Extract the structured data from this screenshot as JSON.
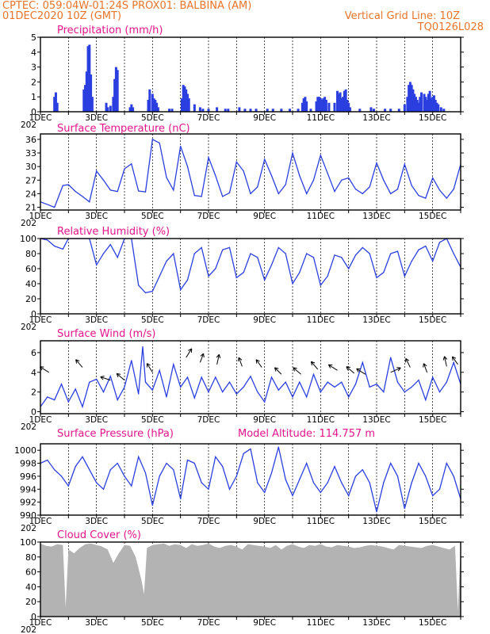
{
  "header": {
    "line1": "CPTEC:   059:04W-01:24S   PROX01: BALBINA (AM)",
    "line2": "01DEC2020 10Z (GMT)",
    "grid_note": "Vertical Grid Line: 10Z",
    "code": "TQ0126L028"
  },
  "colors": {
    "header": "#e8742a",
    "title": "#e4148c",
    "line": "#2b3fe0",
    "bar": "#2b3fe0",
    "cloud": "#b3b3b3"
  },
  "x_axis": {
    "labels": [
      "1DEC",
      "3DEC",
      "5DEC",
      "7DEC",
      "9DEC",
      "11DEC",
      "13DEC",
      "15DEC"
    ],
    "label_days": [
      1,
      3,
      5,
      7,
      9,
      11,
      13,
      15
    ],
    "year_fragment": "202",
    "start_day": 1,
    "end_day": 16
  },
  "chart_data": [
    {
      "type": "bar",
      "title": "Precipitation (mm/h)",
      "ylim": [
        0,
        5
      ],
      "yticks": [
        0,
        1,
        2,
        3,
        4,
        5
      ],
      "x": [
        1.5,
        1.55,
        1.6,
        2.55,
        2.6,
        2.65,
        2.7,
        2.75,
        2.8,
        2.85,
        3.35,
        3.4,
        3.5,
        3.6,
        3.65,
        3.7,
        3.75,
        4.2,
        4.25,
        4.3,
        4.85,
        4.9,
        5.0,
        5.05,
        5.1,
        5.15,
        5.2,
        5.6,
        5.7,
        6.05,
        6.1,
        6.15,
        6.2,
        6.25,
        6.3,
        6.5,
        6.7,
        6.8,
        7.0,
        7.3,
        7.6,
        7.7,
        8.1,
        8.3,
        8.5,
        8.7,
        9.1,
        9.3,
        9.6,
        9.9,
        10.2,
        10.35,
        10.4,
        10.45,
        10.5,
        10.65,
        10.85,
        10.9,
        10.95,
        11.0,
        11.05,
        11.1,
        11.15,
        11.2,
        11.3,
        11.5,
        11.6,
        11.62,
        11.7,
        11.75,
        11.8,
        11.85,
        11.9,
        11.95,
        12.0,
        12.05,
        12.4,
        12.8,
        12.9,
        13.3,
        13.5,
        13.8,
        14.0,
        14.1,
        14.15,
        14.2,
        14.25,
        14.3,
        14.35,
        14.4,
        14.45,
        14.5,
        14.55,
        14.6,
        14.7,
        14.75,
        14.8,
        14.85,
        14.9,
        14.95,
        15.0,
        15.05,
        15.1,
        15.15,
        15.2,
        15.3,
        15.4
      ],
      "values": [
        1.0,
        1.3,
        0.6,
        1.5,
        1.8,
        2.7,
        4.4,
        4.5,
        2.5,
        1.0,
        0.6,
        0.3,
        0.4,
        1.0,
        2.2,
        3.0,
        2.8,
        0.3,
        0.5,
        0.3,
        0.8,
        1.5,
        1.2,
        0.9,
        0.8,
        0.6,
        0.3,
        0.2,
        0.2,
        0.9,
        1.8,
        1.7,
        1.5,
        1.2,
        0.9,
        0.5,
        0.3,
        0.2,
        0.2,
        0.3,
        0.2,
        0.2,
        0.3,
        0.2,
        0.2,
        0.2,
        0.2,
        0.2,
        0.2,
        0.2,
        0.2,
        0.6,
        0.9,
        1.0,
        0.7,
        0.2,
        0.7,
        1.0,
        1.0,
        0.9,
        0.8,
        0.9,
        1.0,
        0.8,
        0.6,
        0.6,
        1.4,
        1.2,
        1.3,
        0.9,
        1.0,
        1.4,
        1.5,
        0.8,
        0.6,
        0.3,
        0.2,
        0.3,
        0.2,
        0.2,
        0.2,
        0.2,
        0.5,
        1.0,
        1.8,
        2.0,
        1.8,
        1.5,
        1.2,
        1.0,
        0.8,
        0.6,
        1.0,
        1.3,
        1.2,
        1.0,
        0.8,
        1.2,
        1.4,
        0.9,
        1.0,
        1.1,
        0.8,
        0.6,
        0.5,
        0.3,
        0.2
      ]
    },
    {
      "type": "line",
      "title": "Surface Temperature (nC)",
      "ylim": [
        20.4,
        37.2
      ],
      "yticks": [
        21,
        24,
        27,
        30,
        33,
        36
      ],
      "x": [
        1.0,
        1.3,
        1.5,
        1.8,
        2.0,
        2.25,
        2.5,
        2.75,
        3.0,
        3.25,
        3.5,
        3.75,
        4.0,
        4.25,
        4.5,
        4.75,
        5.0,
        5.25,
        5.5,
        5.75,
        6.0,
        6.25,
        6.5,
        6.75,
        7.0,
        7.25,
        7.5,
        7.75,
        8.0,
        8.25,
        8.5,
        8.75,
        9.0,
        9.25,
        9.5,
        9.75,
        10.0,
        10.25,
        10.5,
        10.75,
        11.0,
        11.25,
        11.5,
        11.75,
        12.0,
        12.25,
        12.5,
        12.75,
        13.0,
        13.25,
        13.5,
        13.75,
        14.0,
        14.25,
        14.5,
        14.75,
        15.0,
        15.25,
        15.5,
        15.75,
        16.0
      ],
      "values": [
        22.2,
        21.5,
        21.0,
        25.8,
        26.0,
        24.5,
        23.4,
        22.2,
        29.0,
        27.0,
        24.8,
        24.5,
        29.5,
        30.6,
        24.6,
        24.4,
        36.0,
        35.2,
        27.6,
        24.8,
        34.5,
        30.0,
        23.6,
        23.4,
        32.0,
        28.0,
        23.4,
        24.2,
        31.0,
        29.0,
        24.0,
        25.5,
        31.6,
        28.0,
        24.0,
        26.0,
        33.0,
        28.0,
        24.0,
        27.0,
        32.5,
        28.5,
        24.5,
        27.0,
        27.5,
        25.0,
        24.0,
        25.5,
        30.8,
        27.0,
        24.0,
        25.0,
        30.5,
        25.8,
        23.6,
        23.0,
        27.5,
        24.8,
        23.0,
        25.0,
        30.5
      ]
    },
    {
      "type": "line",
      "title": "Relative Humidity (%)",
      "ylim": [
        0,
        100
      ],
      "yticks": [
        0,
        20,
        40,
        60,
        80,
        100
      ],
      "x": [
        1.0,
        1.25,
        1.5,
        1.8,
        2.0,
        2.25,
        2.5,
        2.75,
        3.0,
        3.25,
        3.5,
        3.75,
        4.0,
        4.25,
        4.5,
        4.75,
        5.0,
        5.25,
        5.5,
        5.75,
        6.0,
        6.25,
        6.5,
        6.75,
        7.0,
        7.25,
        7.5,
        7.75,
        8.0,
        8.25,
        8.5,
        8.75,
        9.0,
        9.25,
        9.5,
        9.75,
        10.0,
        10.25,
        10.5,
        10.75,
        11.0,
        11.25,
        11.5,
        11.75,
        12.0,
        12.25,
        12.5,
        12.75,
        13.0,
        13.25,
        13.5,
        13.75,
        14.0,
        14.25,
        14.5,
        14.75,
        15.0,
        15.25,
        15.5,
        15.75,
        16.0
      ],
      "values": [
        100,
        98,
        90,
        86,
        100,
        100,
        100,
        100,
        65,
        80,
        92,
        75,
        100,
        100,
        38,
        28,
        30,
        50,
        70,
        80,
        32,
        45,
        80,
        88,
        50,
        60,
        85,
        88,
        48,
        55,
        80,
        75,
        45,
        65,
        88,
        80,
        40,
        55,
        80,
        75,
        38,
        50,
        78,
        75,
        60,
        78,
        88,
        80,
        48,
        55,
        80,
        83,
        50,
        70,
        85,
        90,
        70,
        95,
        100,
        80,
        62
      ]
    },
    {
      "type": "line",
      "title": "Surface Wind (m/s)",
      "ylim": [
        -0.2,
        7.2
      ],
      "yticks": [
        0,
        2,
        4,
        6
      ],
      "x": [
        1.0,
        1.25,
        1.5,
        1.75,
        2.0,
        2.25,
        2.5,
        2.75,
        3.0,
        3.25,
        3.5,
        3.75,
        4.0,
        4.25,
        4.5,
        4.65,
        4.75,
        5.0,
        5.25,
        5.5,
        5.75,
        6.0,
        6.25,
        6.5,
        6.75,
        7.0,
        7.25,
        7.5,
        7.75,
        8.0,
        8.25,
        8.5,
        8.75,
        9.0,
        9.25,
        9.5,
        9.75,
        10.0,
        10.25,
        10.5,
        10.75,
        11.0,
        11.25,
        11.5,
        11.75,
        12.0,
        12.25,
        12.5,
        12.75,
        13.0,
        13.25,
        13.5,
        13.75,
        14.0,
        14.25,
        14.5,
        14.75,
        15.0,
        15.25,
        15.5,
        15.75,
        16.0
      ],
      "values": [
        0.5,
        1.5,
        1.2,
        2.8,
        1.0,
        2.3,
        0.5,
        3.0,
        3.3,
        2.0,
        3.6,
        1.2,
        2.5,
        5.2,
        1.8,
        6.6,
        3.0,
        2.2,
        4.2,
        1.5,
        4.8,
        2.5,
        3.5,
        1.4,
        3.5,
        2.0,
        3.5,
        2.0,
        3.0,
        1.8,
        2.5,
        3.6,
        2.0,
        1.0,
        3.5,
        2.2,
        3.0,
        1.5,
        3.0,
        1.5,
        3.8,
        2.0,
        3.0,
        2.5,
        3.0,
        1.5,
        2.8,
        5.0,
        2.5,
        2.8,
        2.0,
        5.5,
        3.0,
        2.0,
        2.5,
        3.2,
        1.2,
        3.5,
        2.0,
        3.0,
        5.0,
        2.8
      ]
    },
    {
      "type": "line",
      "title": "Surface Pressure (hPa)",
      "annotation": "Model Altitude: 114.757 m",
      "ylim": [
        990,
        1001
      ],
      "yticks": [
        990,
        992,
        994,
        996,
        998,
        1000
      ],
      "x": [
        1.0,
        1.25,
        1.5,
        1.75,
        2.0,
        2.25,
        2.5,
        2.75,
        3.0,
        3.25,
        3.5,
        3.75,
        4.0,
        4.25,
        4.5,
        4.75,
        5.0,
        5.25,
        5.5,
        5.75,
        6.0,
        6.25,
        6.5,
        6.75,
        7.0,
        7.25,
        7.5,
        7.75,
        8.0,
        8.25,
        8.5,
        8.75,
        9.0,
        9.25,
        9.5,
        9.75,
        10.0,
        10.25,
        10.5,
        10.75,
        11.0,
        11.25,
        11.5,
        11.75,
        12.0,
        12.25,
        12.5,
        12.75,
        13.0,
        13.25,
        13.5,
        13.75,
        14.0,
        14.25,
        14.5,
        14.75,
        15.0,
        15.25,
        15.5,
        15.75,
        16.0
      ],
      "values": [
        998,
        998.5,
        997,
        996,
        994.5,
        997.5,
        999,
        997,
        995,
        994,
        997,
        998,
        996,
        994.5,
        999,
        996.5,
        991.5,
        996,
        998,
        997,
        992.5,
        998.5,
        998,
        995,
        994,
        999,
        997.5,
        994,
        996,
        999.5,
        1000.2,
        995,
        993.5,
        996.5,
        1000.5,
        995.5,
        993,
        995.5,
        998,
        995,
        993.5,
        995,
        997.5,
        995,
        993,
        996,
        997,
        995,
        990.5,
        995,
        998,
        996,
        991,
        995,
        998,
        996,
        993,
        994,
        998,
        996,
        992.5
      ]
    },
    {
      "type": "bar",
      "title": "Cloud Cover (%)",
      "ylim": [
        0,
        100
      ],
      "yticks": [
        0,
        20,
        40,
        60,
        80,
        100
      ],
      "x": [
        1.0,
        1.2,
        1.4,
        1.6,
        1.8,
        1.9,
        2.0,
        2.2,
        2.4,
        2.6,
        2.8,
        3.0,
        3.2,
        3.4,
        3.6,
        3.8,
        4.0,
        4.2,
        4.4,
        4.6,
        4.7,
        4.8,
        5.0,
        5.2,
        5.4,
        5.6,
        5.8,
        6.0,
        6.2,
        6.4,
        6.6,
        6.8,
        7.0,
        7.2,
        7.4,
        7.6,
        7.8,
        8.0,
        8.2,
        8.4,
        8.6,
        8.8,
        9.0,
        9.2,
        9.4,
        9.6,
        9.8,
        10.0,
        10.2,
        10.4,
        10.6,
        10.8,
        11.0,
        11.2,
        11.4,
        11.6,
        11.8,
        12.0,
        12.2,
        12.4,
        12.6,
        12.8,
        13.0,
        13.2,
        13.4,
        13.6,
        13.8,
        14.0,
        14.2,
        14.4,
        14.6,
        14.8,
        15.0,
        15.2,
        15.4,
        15.6,
        15.8,
        15.9,
        16.0
      ],
      "values": [
        98,
        95,
        94,
        97,
        96,
        12,
        90,
        85,
        92,
        97,
        98,
        96,
        94,
        90,
        72,
        85,
        96,
        95,
        80,
        50,
        30,
        92,
        96,
        97,
        98,
        95,
        97,
        96,
        92,
        97,
        95,
        96,
        98,
        94,
        92,
        95,
        96,
        94,
        90,
        97,
        96,
        95,
        94,
        92,
        96,
        90,
        95,
        97,
        94,
        92,
        96,
        95,
        97,
        94,
        93,
        96,
        95,
        94,
        92,
        93,
        95,
        96,
        95,
        94,
        92,
        90,
        96,
        95,
        94,
        93,
        92,
        95,
        96,
        94,
        92,
        90,
        95,
        8,
        96
      ]
    },
    {
      "type": "scatter",
      "title": "Wind Direction Arrows",
      "x": [
        1.3,
        2.5,
        3.5,
        4.0,
        5.0,
        6.2,
        6.7,
        7.3,
        8.2,
        8.9,
        9.6,
        10.3,
        10.9,
        11.6,
        12.2,
        12.6,
        13.5,
        14.2,
        14.8,
        15.5,
        15.9
      ],
      "values": [
        4.0,
        4.5,
        3.2,
        3.2,
        4.0,
        5.5,
        5.0,
        4.8,
        4.6,
        4.5,
        3.8,
        3.8,
        4.3,
        4.2,
        3.9,
        3.8,
        4.0,
        4.5,
        4.0,
        4.6,
        4.8
      ],
      "u": [
        -0.8,
        -0.6,
        -0.9,
        -0.7,
        -0.5,
        0.5,
        0.3,
        0.2,
        -0.3,
        -0.5,
        -0.6,
        -0.7,
        -0.6,
        -0.8,
        -0.7,
        -0.8,
        0.9,
        -0.4,
        -0.3,
        -0.2,
        -0.5
      ],
      "v": [
        0.5,
        0.7,
        0.3,
        0.6,
        0.8,
        0.8,
        0.8,
        0.9,
        0.8,
        0.7,
        0.6,
        0.6,
        0.7,
        0.5,
        0.6,
        0.5,
        0.4,
        0.8,
        0.8,
        0.9,
        0.7
      ]
    }
  ]
}
